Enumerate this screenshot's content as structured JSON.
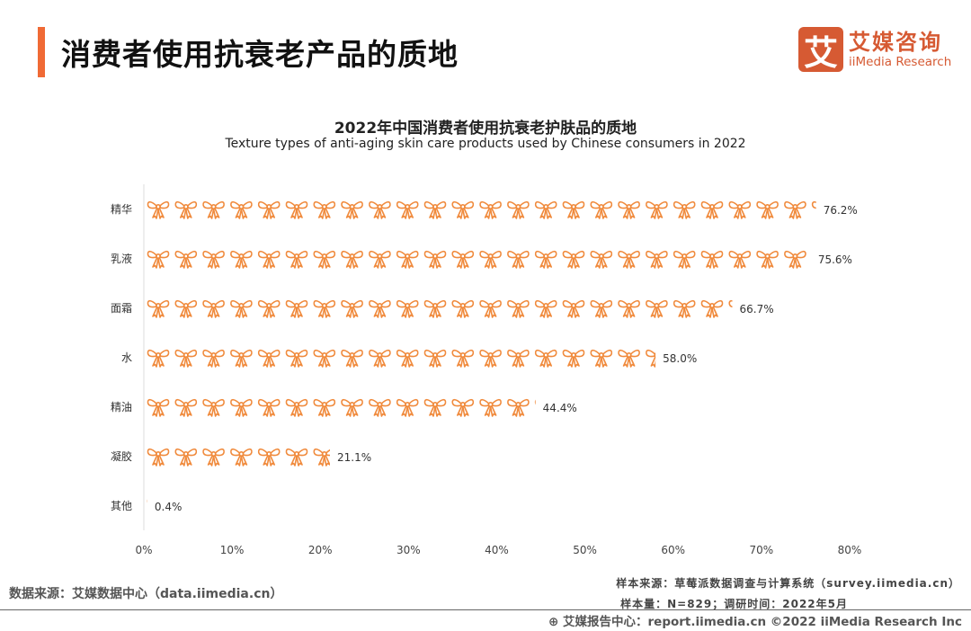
{
  "header": {
    "title": "消费者使用抗衰老产品的质地",
    "logo_mark": "艾",
    "logo_cn": "艾媒咨询",
    "logo_en": "iiMedia Research"
  },
  "chart_data": {
    "type": "bar",
    "title": "2022年中国消费者使用抗衰老护肤品的质地",
    "subtitle": "Texture types of anti-aging skin care products used by Chinese consumers in 2022",
    "categories": [
      "精华",
      "乳液",
      "面霜",
      "水",
      "精油",
      "凝胶",
      "其他"
    ],
    "values": [
      76.2,
      75.6,
      66.7,
      58.0,
      44.4,
      21.1,
      0.4
    ],
    "value_labels": [
      "76.2%",
      "75.6%",
      "66.7%",
      "58.0%",
      "44.4%",
      "21.1%",
      "0.4%"
    ],
    "xlim": [
      0,
      80
    ],
    "xticks": [
      "0%",
      "10%",
      "20%",
      "30%",
      "40%",
      "50%",
      "60%",
      "70%",
      "80%"
    ],
    "icon": "bow-icon",
    "color": "#f08a3c"
  },
  "footer": {
    "source": "数据来源：艾媒数据中心（data.iimedia.cn）",
    "sample_source": "样本来源：草莓派数据调查与计算系统（survey.iimedia.cn）",
    "sample_size": "样本量：N=829；调研时间：2022年5月",
    "report": "艾媒报告中心：report.iimedia.cn   ©2022  iiMedia Research  Inc"
  }
}
